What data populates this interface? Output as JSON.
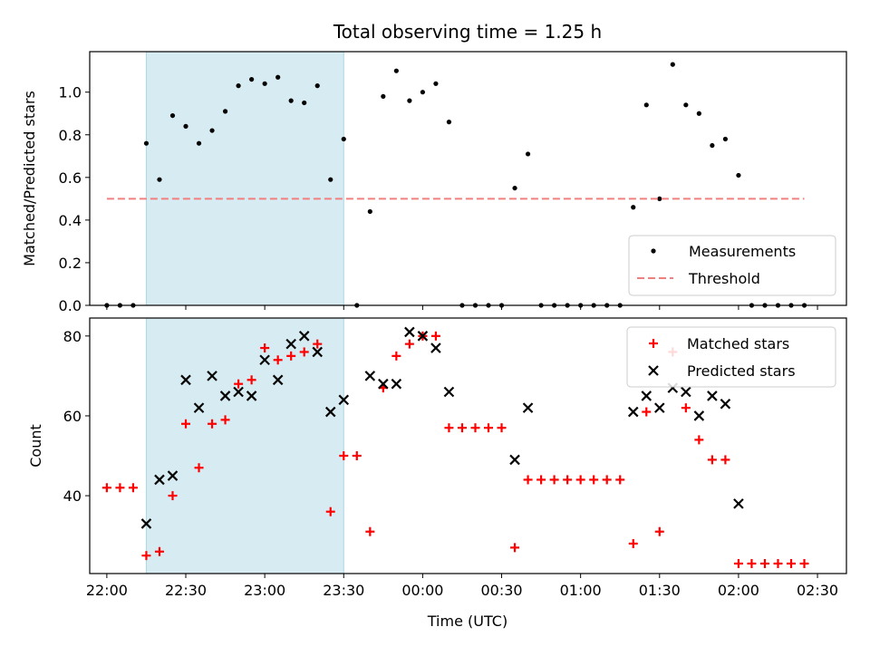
{
  "chart_data": {
    "title": "Total observing time = 1.25 h",
    "xlabel": "Time (UTC)",
    "x_tick_labels": [
      "22:00",
      "22:30",
      "23:00",
      "23:30",
      "00:00",
      "00:30",
      "01:00",
      "01:30",
      "02:00",
      "02:30"
    ],
    "x_tick_minutes": [
      0,
      30,
      60,
      90,
      120,
      150,
      180,
      210,
      240,
      270
    ],
    "x_range_minutes": [
      -6.5,
      281
    ],
    "highlight_span": {
      "start": "22:15",
      "end": "23:30"
    },
    "panels": [
      {
        "type": "scatter",
        "ylabel": "Matched/Predicted stars",
        "ylim": [
          0,
          1.19
        ],
        "y_ticks": [
          0.0,
          0.2,
          0.4,
          0.6,
          0.8,
          1.0
        ],
        "y_tick_labels": [
          "0.0",
          "0.2",
          "0.4",
          "0.6",
          "0.8",
          "1.0"
        ],
        "legend_position": "lower-right",
        "series": [
          {
            "name": "Measurements",
            "marker": "dot",
            "color": "#000000",
            "x": [
              "22:00",
              "22:05",
              "22:10",
              "22:15",
              "22:20",
              "22:25",
              "22:30",
              "22:35",
              "22:40",
              "22:45",
              "22:50",
              "22:55",
              "23:00",
              "23:05",
              "23:10",
              "23:15",
              "23:20",
              "23:25",
              "23:30",
              "23:35",
              "23:40",
              "23:45",
              "23:50",
              "23:55",
              "00:00",
              "00:05",
              "00:10",
              "00:15",
              "00:20",
              "00:25",
              "00:30",
              "00:35",
              "00:40",
              "00:45",
              "00:50",
              "00:55",
              "01:00",
              "01:05",
              "01:10",
              "01:15",
              "01:20",
              "01:25",
              "01:30",
              "01:35",
              "01:40",
              "01:45",
              "01:50",
              "01:55",
              "02:00",
              "02:05",
              "02:10",
              "02:15",
              "02:20",
              "02:25"
            ],
            "y": [
              0.0,
              0.0,
              0.0,
              0.76,
              0.59,
              0.89,
              0.84,
              0.76,
              0.82,
              0.91,
              1.03,
              1.06,
              1.04,
              1.07,
              0.96,
              0.95,
              1.03,
              0.59,
              0.78,
              0.0,
              0.44,
              0.98,
              1.1,
              0.96,
              1.0,
              1.04,
              0.86,
              0.0,
              0.0,
              0.0,
              0.0,
              0.55,
              0.71,
              0.0,
              0.0,
              0.0,
              0.0,
              0.0,
              0.0,
              0.0,
              0.46,
              0.94,
              0.5,
              1.13,
              0.94,
              0.9,
              0.75,
              0.78,
              0.61,
              0.0,
              0.0,
              0.0,
              0.0,
              0.0
            ]
          },
          {
            "name": "Threshold",
            "marker": "dashed-line",
            "color": "#f08080",
            "x": [
              "22:00",
              "02:25"
            ],
            "y": [
              0.5,
              0.5
            ]
          }
        ]
      },
      {
        "type": "scatter",
        "ylabel": "Count",
        "ylim": [
          20.5,
          84.5
        ],
        "y_ticks": [
          40,
          60,
          80
        ],
        "y_tick_labels": [
          "40",
          "60",
          "80"
        ],
        "legend_position": "upper-right",
        "series": [
          {
            "name": "Matched stars",
            "marker": "plus",
            "color": "#ff0000",
            "x": [
              "22:00",
              "22:05",
              "22:10",
              "22:15",
              "22:20",
              "22:25",
              "22:30",
              "22:35",
              "22:40",
              "22:45",
              "22:50",
              "22:55",
              "23:00",
              "23:05",
              "23:10",
              "23:15",
              "23:20",
              "23:25",
              "23:30",
              "23:35",
              "23:40",
              "23:45",
              "23:50",
              "23:55",
              "00:00",
              "00:05",
              "00:10",
              "00:15",
              "00:20",
              "00:25",
              "00:30",
              "00:35",
              "00:40",
              "00:45",
              "00:50",
              "00:55",
              "01:00",
              "01:05",
              "01:10",
              "01:15",
              "01:20",
              "01:25",
              "01:30",
              "01:35",
              "01:40",
              "01:45",
              "01:50",
              "01:55",
              "02:00",
              "02:05",
              "02:10",
              "02:15",
              "02:20",
              "02:25"
            ],
            "y": [
              42,
              42,
              42,
              25,
              26,
              40,
              58,
              47,
              58,
              59,
              68,
              69,
              77,
              74,
              75,
              76,
              78,
              36,
              50,
              50,
              31,
              67,
              75,
              78,
              80,
              80,
              57,
              57,
              57,
              57,
              57,
              27,
              44,
              44,
              44,
              44,
              44,
              44,
              44,
              44,
              28,
              61,
              31,
              76,
              62,
              54,
              49,
              49,
              23,
              23,
              23,
              23,
              23,
              23
            ]
          },
          {
            "name": "Predicted stars",
            "marker": "x",
            "color": "#000000",
            "x": [
              "22:15",
              "22:20",
              "22:25",
              "22:30",
              "22:35",
              "22:40",
              "22:45",
              "22:50",
              "22:55",
              "23:00",
              "23:05",
              "23:10",
              "23:15",
              "23:20",
              "23:25",
              "23:30",
              "23:40",
              "23:45",
              "23:50",
              "23:55",
              "00:00",
              "00:05",
              "00:10",
              "00:35",
              "00:40",
              "01:20",
              "01:25",
              "01:30",
              "01:35",
              "01:40",
              "01:45",
              "01:50",
              "01:55",
              "02:00"
            ],
            "y": [
              33,
              44,
              45,
              69,
              62,
              70,
              65,
              66,
              65,
              74,
              69,
              78,
              80,
              76,
              61,
              64,
              70,
              68,
              68,
              81,
              80,
              77,
              66,
              49,
              62,
              61,
              65,
              62,
              67,
              66,
              60,
              65,
              63,
              38
            ]
          }
        ]
      }
    ]
  }
}
